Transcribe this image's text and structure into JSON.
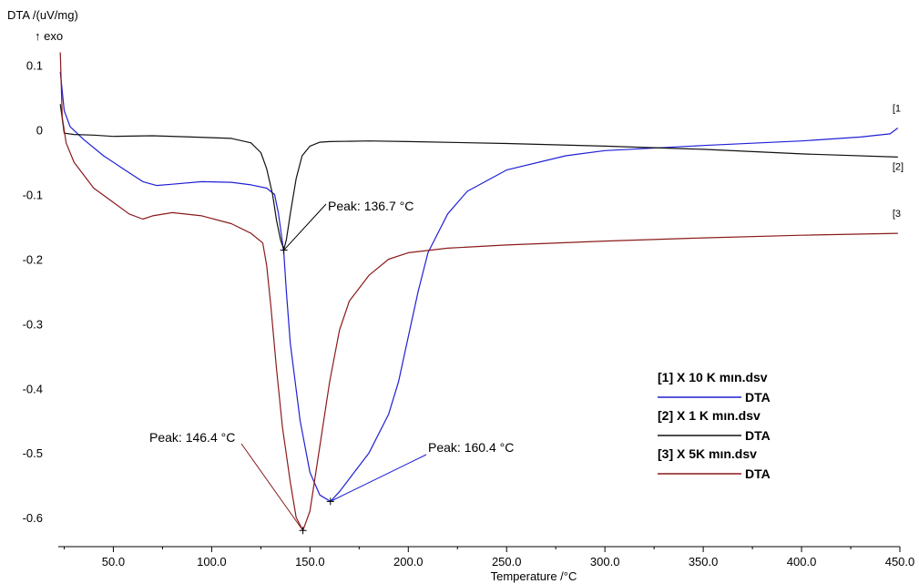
{
  "chart_data": {
    "type": "line",
    "ylabel": "DTA /(uV/mg)",
    "exo_label": "↑ exo",
    "xlabel": "Temperature /°C",
    "xlim": [
      22,
      450
    ],
    "ylim": [
      -0.645,
      0.125
    ],
    "x_ticks": [
      50,
      100,
      150,
      200,
      250,
      300,
      350,
      400,
      450
    ],
    "x_tick_labels": [
      "50.0",
      "100.0",
      "150.0",
      "200.0",
      "250.0",
      "300.0",
      "350.0",
      "400.0",
      "450.0"
    ],
    "y_ticks": [
      0.1,
      0,
      -0.1,
      -0.2,
      -0.3,
      -0.4,
      -0.5,
      -0.6
    ],
    "y_tick_labels": [
      "0.1",
      "0",
      "-0.1",
      "-0.2",
      "-0.3",
      "-0.4",
      "-0.5",
      "-0.6"
    ],
    "series": [
      {
        "end_label": "[1",
        "file": "[1] X 10 K mın.dsv",
        "dataset": "DTA",
        "color": "#1f1fd6",
        "x": [
          23,
          25,
          28,
          35,
          45,
          55,
          65,
          72,
          80,
          95,
          110,
          120,
          128,
          132,
          134,
          136.7,
          138,
          140,
          145,
          150,
          155,
          160.4,
          165,
          170,
          180,
          190,
          195,
          200,
          205,
          210,
          220,
          230,
          250,
          280,
          300,
          350,
          400,
          430,
          445,
          449
        ],
        "y": [
          0.09,
          0.03,
          0.005,
          -0.015,
          -0.04,
          -0.06,
          -0.08,
          -0.086,
          -0.084,
          -0.08,
          -0.081,
          -0.085,
          -0.09,
          -0.1,
          -0.13,
          -0.19,
          -0.25,
          -0.33,
          -0.45,
          -0.53,
          -0.565,
          -0.575,
          -0.56,
          -0.54,
          -0.5,
          -0.44,
          -0.39,
          -0.32,
          -0.25,
          -0.19,
          -0.13,
          -0.095,
          -0.062,
          -0.04,
          -0.032,
          -0.024,
          -0.017,
          -0.011,
          -0.006,
          0.003
        ]
      },
      {
        "end_label": "[2]",
        "file": "[2] X 1 K mın.dsv",
        "dataset": "DTA",
        "color": "#111111",
        "x": [
          23,
          25,
          30,
          40,
          50,
          70,
          90,
          110,
          120,
          125,
          128,
          131,
          133,
          135,
          136.7,
          138,
          140,
          143,
          146,
          150,
          155,
          160,
          180,
          200,
          250,
          300,
          350,
          400,
          449
        ],
        "y": [
          0.04,
          -0.005,
          -0.007,
          -0.008,
          -0.01,
          -0.009,
          -0.011,
          -0.013,
          -0.02,
          -0.035,
          -0.06,
          -0.1,
          -0.14,
          -0.17,
          -0.185,
          -0.17,
          -0.13,
          -0.075,
          -0.04,
          -0.025,
          -0.019,
          -0.018,
          -0.017,
          -0.018,
          -0.021,
          -0.025,
          -0.03,
          -0.037,
          -0.042
        ]
      },
      {
        "end_label": "[3",
        "file": "[3] X 5K mın.dsv",
        "dataset": "DTA",
        "color": "#8b1a1a",
        "x": [
          23,
          24,
          26,
          30,
          40,
          50,
          58,
          65,
          70,
          80,
          95,
          110,
          120,
          126,
          128,
          130,
          133,
          136,
          140,
          143,
          146.4,
          150,
          155,
          160,
          165,
          170,
          180,
          190,
          200,
          220,
          250,
          300,
          350,
          400,
          449
        ],
        "y": [
          0.12,
          0.02,
          -0.02,
          -0.05,
          -0.09,
          -0.112,
          -0.13,
          -0.138,
          -0.133,
          -0.128,
          -0.133,
          -0.145,
          -0.16,
          -0.175,
          -0.21,
          -0.27,
          -0.37,
          -0.46,
          -0.545,
          -0.6,
          -0.62,
          -0.59,
          -0.49,
          -0.39,
          -0.31,
          -0.265,
          -0.225,
          -0.2,
          -0.19,
          -0.183,
          -0.178,
          -0.172,
          -0.167,
          -0.163,
          -0.16
        ]
      }
    ],
    "annotations": [
      {
        "text": "Peak: 136.7 °C",
        "x": 136.7,
        "y": -0.186,
        "color": "#000000",
        "series": 1
      },
      {
        "text": "Peak: 146.4 °C",
        "x": 146.4,
        "y": -0.62,
        "color": "#8b1a1a",
        "series": 2
      },
      {
        "text": "Peak: 160.4 °C",
        "x": 160.4,
        "y": -0.575,
        "color": "#1f1fd6",
        "series": 0
      }
    ],
    "legend_placement": "bottom-right",
    "grid": false
  }
}
